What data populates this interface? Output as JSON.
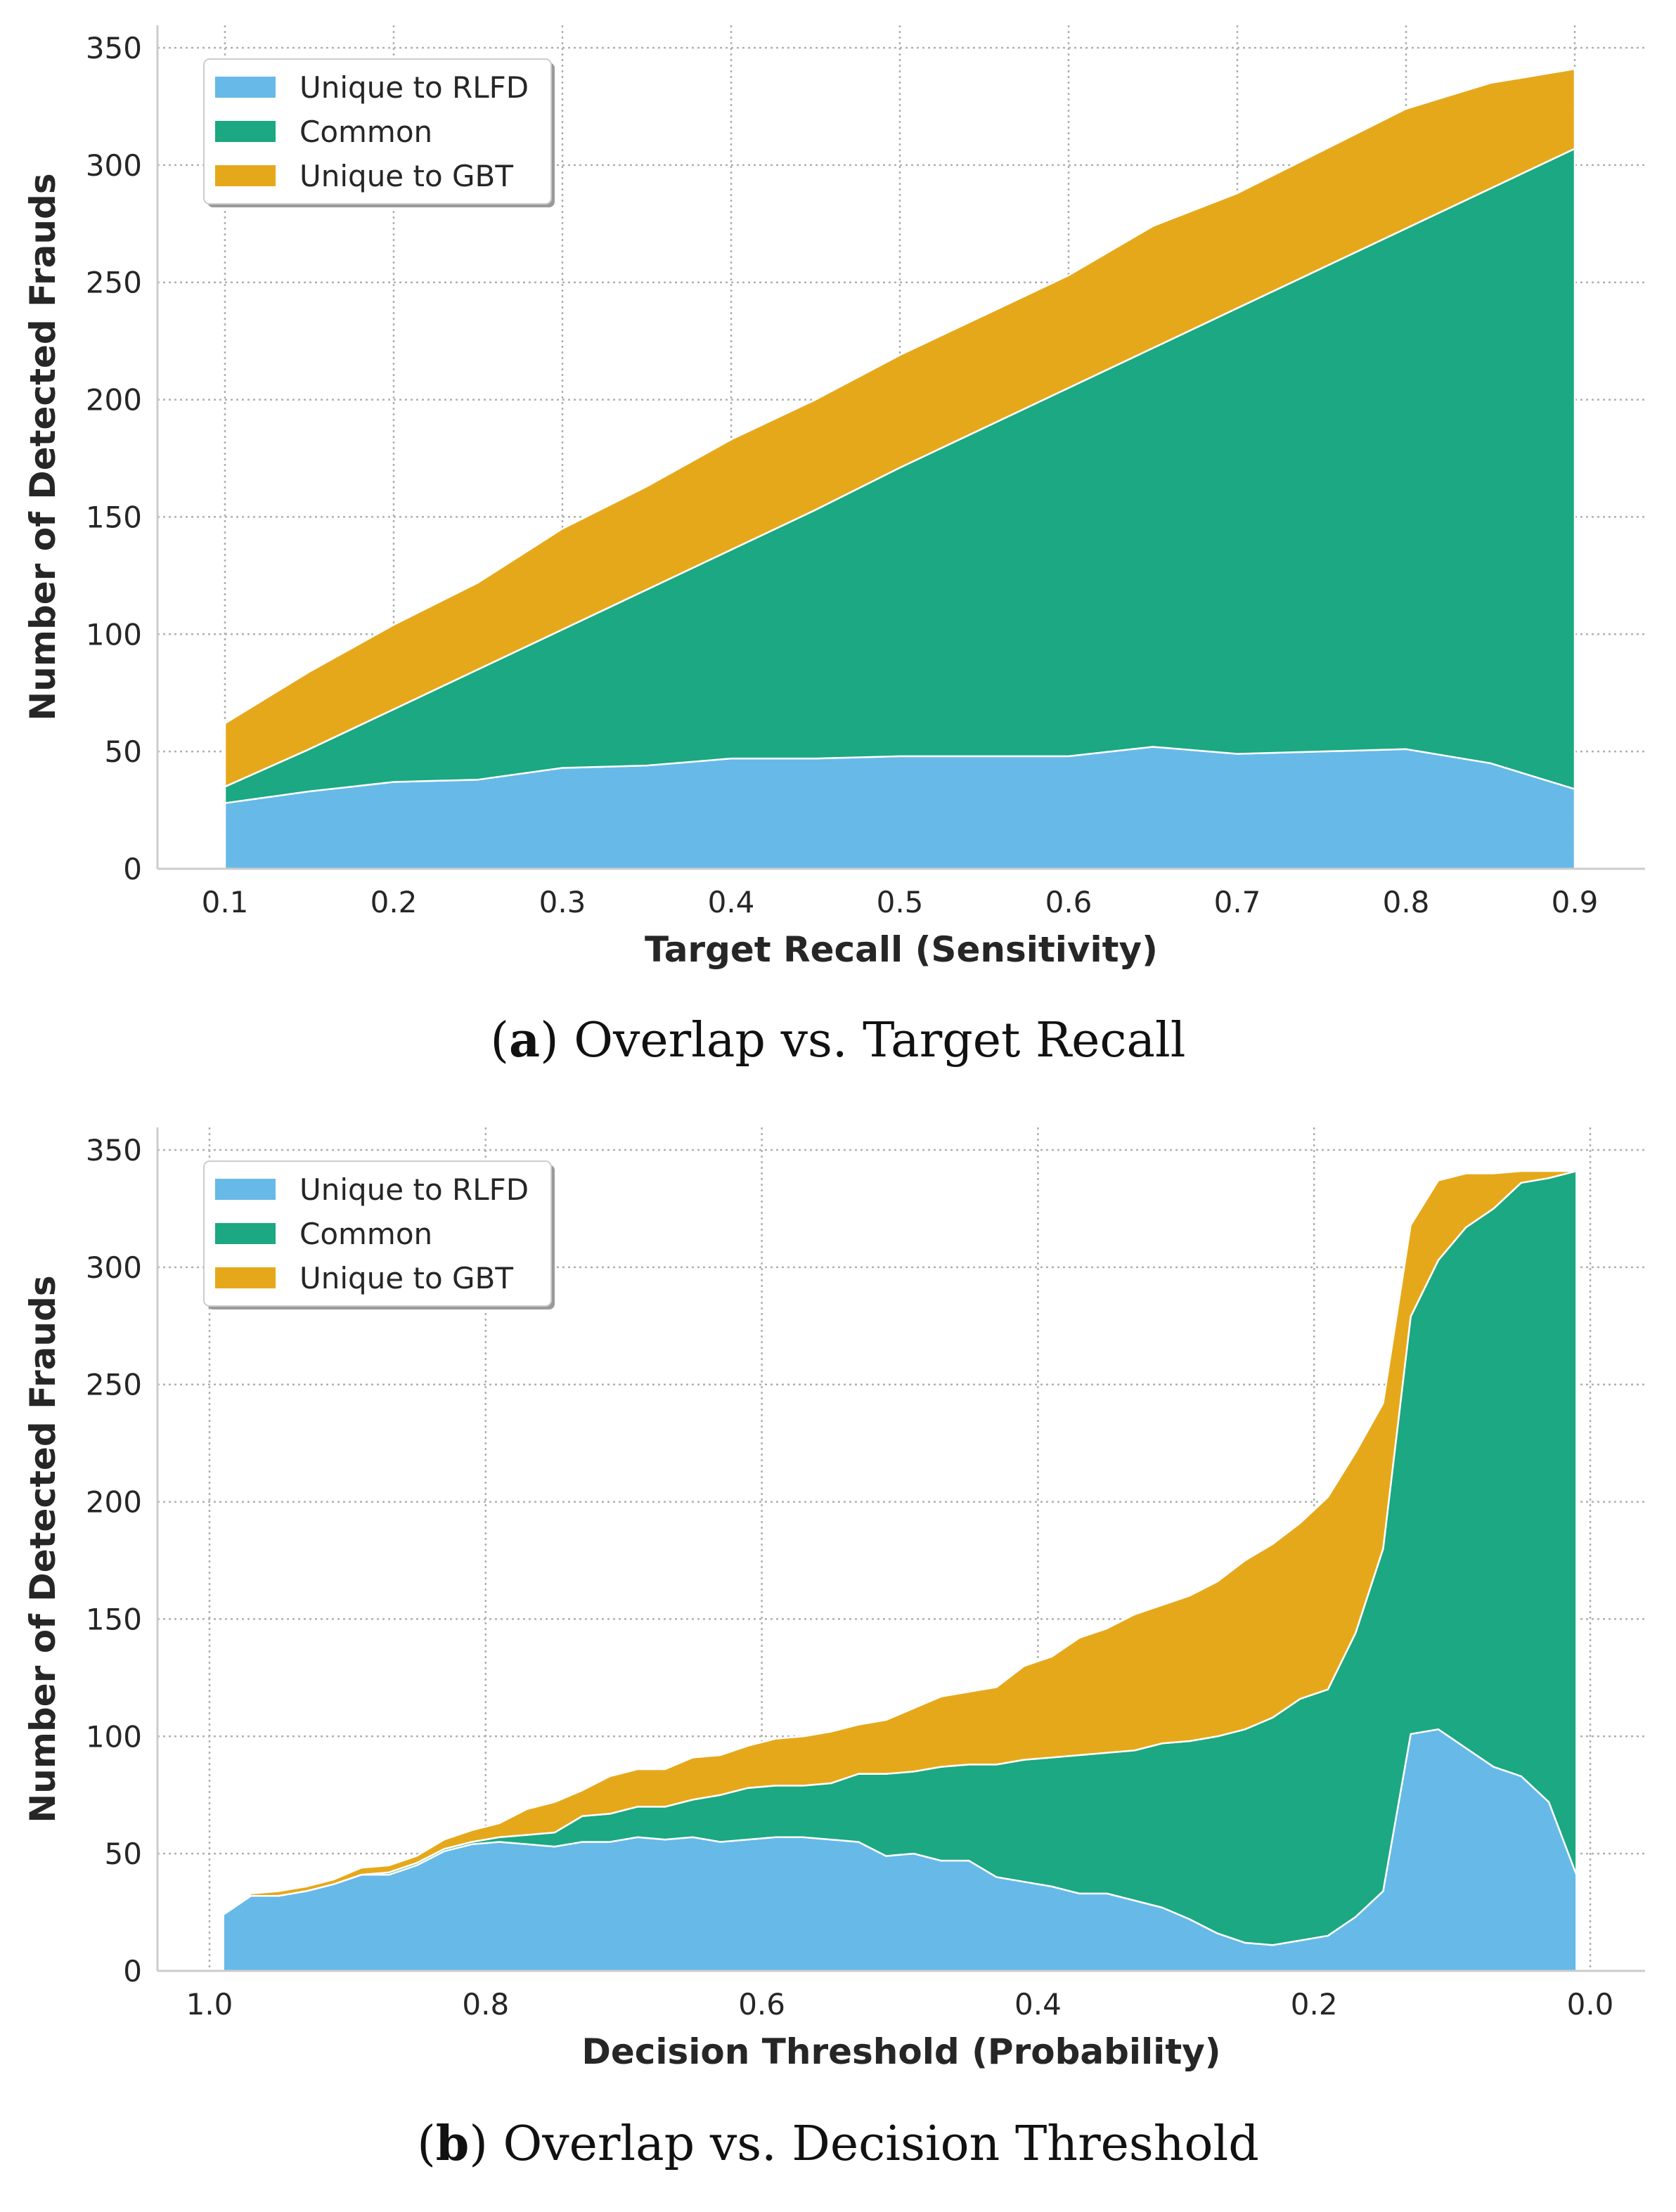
{
  "colors": {
    "rlfd": "#67b9e8",
    "common": "#1ba882",
    "gbt": "#e6a81b"
  },
  "chart_data": [
    {
      "type": "area",
      "stacked": true,
      "caption_letter": "a",
      "caption_text": "Overlap vs. Target Recall",
      "xlabel": "Target Recall (Sensitivity)",
      "ylabel": "Number of Detected Frauds",
      "xlim": [
        0.1,
        0.9
      ],
      "ylim": [
        0,
        350
      ],
      "xticks": [
        "0.1",
        "0.2",
        "0.3",
        "0.4",
        "0.5",
        "0.6",
        "0.7",
        "0.8",
        "0.9"
      ],
      "yticks": [
        "0",
        "50",
        "100",
        "150",
        "200",
        "250",
        "300",
        "350"
      ],
      "grid": true,
      "legend_position": "top-left",
      "x": [
        0.1,
        0.15,
        0.2,
        0.25,
        0.3,
        0.35,
        0.4,
        0.45,
        0.5,
        0.55,
        0.6,
        0.65,
        0.7,
        0.75,
        0.8,
        0.85,
        0.9
      ],
      "series": [
        {
          "name": "Unique to RLFD",
          "values": [
            28,
            33,
            37,
            38,
            43,
            44,
            47,
            47,
            48,
            48,
            48,
            52,
            49,
            50,
            51,
            45,
            34
          ]
        },
        {
          "name": "Common",
          "values": [
            7,
            18,
            31,
            47,
            59,
            75,
            89,
            106,
            123,
            140,
            157,
            170,
            190,
            206,
            222,
            245,
            273
          ]
        },
        {
          "name": "Unique to GBT",
          "values": [
            27,
            33,
            36,
            37,
            43,
            44,
            47,
            47,
            48,
            48,
            48,
            52,
            49,
            50,
            51,
            45,
            34
          ]
        }
      ]
    },
    {
      "type": "area",
      "stacked": true,
      "caption_letter": "b",
      "caption_text": "Overlap vs. Decision Threshold",
      "xlabel": "Decision Threshold (Probability)",
      "ylabel": "Number of Detected Frauds",
      "xlim": [
        1.0,
        0.0
      ],
      "x_inverted": true,
      "ylim": [
        0,
        350
      ],
      "xticks": [
        "1.0",
        "0.8",
        "0.6",
        "0.4",
        "0.2",
        "0.0"
      ],
      "yticks": [
        "0",
        "50",
        "100",
        "150",
        "200",
        "250",
        "300",
        "350"
      ],
      "grid": true,
      "legend_position": "top-left",
      "x": [
        0.99,
        0.97,
        0.95,
        0.93,
        0.91,
        0.89,
        0.87,
        0.85,
        0.83,
        0.81,
        0.79,
        0.77,
        0.75,
        0.73,
        0.71,
        0.69,
        0.67,
        0.65,
        0.63,
        0.61,
        0.59,
        0.57,
        0.55,
        0.53,
        0.51,
        0.49,
        0.47,
        0.45,
        0.43,
        0.41,
        0.39,
        0.37,
        0.35,
        0.33,
        0.31,
        0.29,
        0.27,
        0.25,
        0.23,
        0.21,
        0.19,
        0.17,
        0.15,
        0.13,
        0.11,
        0.09,
        0.07,
        0.05,
        0.03,
        0.01
      ],
      "series": [
        {
          "name": "Unique to RLFD",
          "values": [
            24,
            32,
            32,
            34,
            37,
            41,
            41,
            45,
            51,
            54,
            55,
            54,
            53,
            55,
            55,
            57,
            56,
            57,
            55,
            56,
            57,
            57,
            56,
            55,
            49,
            50,
            47,
            47,
            40,
            38,
            36,
            33,
            33,
            30,
            27,
            22,
            16,
            12,
            11,
            13,
            15,
            23,
            34,
            101,
            103,
            95,
            87,
            83,
            72,
            41
          ]
        },
        {
          "name": "Common",
          "values": [
            0,
            0,
            0,
            0,
            0,
            0,
            1,
            1,
            1,
            1,
            2,
            4,
            6,
            11,
            12,
            13,
            14,
            16,
            20,
            22,
            22,
            22,
            24,
            29,
            35,
            35,
            40,
            41,
            48,
            52,
            55,
            59,
            60,
            64,
            70,
            76,
            84,
            91,
            97,
            103,
            105,
            121,
            146,
            178,
            200,
            222,
            238,
            253,
            266,
            300
          ]
        },
        {
          "name": "Unique to GBT",
          "values": [
            0,
            1,
            2,
            2,
            2,
            3,
            3,
            3,
            4,
            5,
            6,
            11,
            13,
            11,
            16,
            16,
            16,
            18,
            17,
            18,
            20,
            21,
            22,
            21,
            23,
            27,
            30,
            31,
            33,
            40,
            43,
            50,
            53,
            58,
            59,
            62,
            66,
            72,
            74,
            75,
            82,
            77,
            62,
            39,
            34,
            23,
            15,
            5,
            3,
            0
          ]
        }
      ]
    }
  ]
}
